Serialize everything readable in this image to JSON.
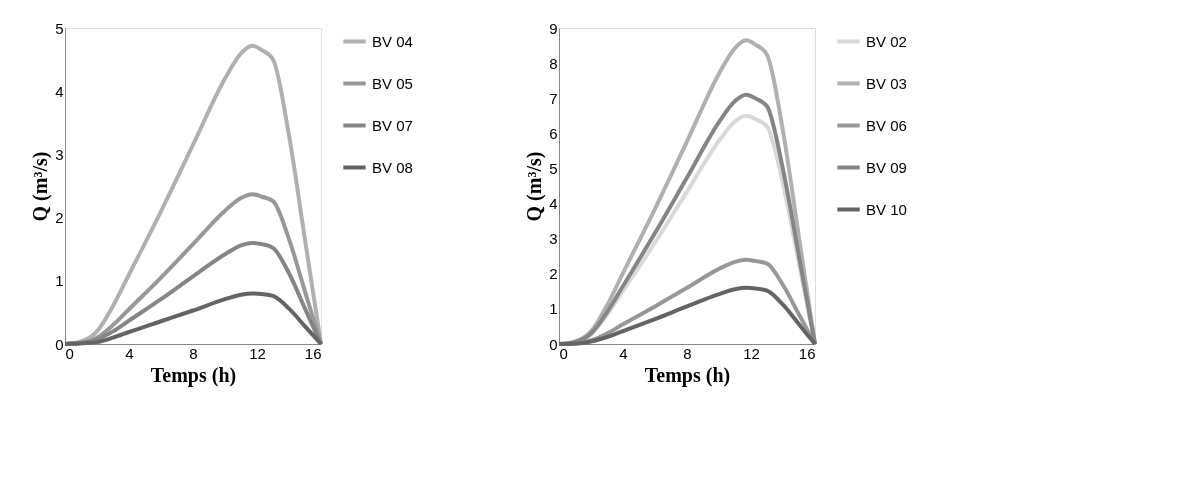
{
  "chart_data": [
    {
      "type": "line",
      "xlabel": "Temps (h)",
      "ylabel": "Q (m³/s)",
      "xlim": [
        0,
        16
      ],
      "xticks": [
        0,
        4,
        8,
        12,
        16
      ],
      "ylim": [
        0,
        5
      ],
      "yticks": [
        0,
        1,
        2,
        3,
        4,
        5
      ],
      "grid": false,
      "legend": "right",
      "marker": "none",
      "line_style": "solid",
      "x": [
        0,
        1,
        2,
        3,
        4,
        6,
        8,
        10,
        11,
        11.7,
        12.3,
        13,
        14,
        15,
        16
      ],
      "series": [
        {
          "name": "BV 04",
          "color": "#b0b0b0",
          "values": [
            0,
            0.04,
            0.2,
            0.6,
            1.1,
            2.1,
            3.15,
            4.2,
            4.6,
            4.72,
            4.65,
            4.5,
            3.3,
            1.65,
            0
          ]
        },
        {
          "name": "BV 05",
          "color": "#989898",
          "values": [
            0,
            0.02,
            0.1,
            0.3,
            0.55,
            1.05,
            1.58,
            2.11,
            2.31,
            2.37,
            2.33,
            2.26,
            1.66,
            0.83,
            0
          ]
        },
        {
          "name": "BV 07",
          "color": "#858585",
          "values": [
            0,
            0.01,
            0.07,
            0.2,
            0.37,
            0.71,
            1.07,
            1.42,
            1.56,
            1.6,
            1.58,
            1.52,
            1.12,
            0.56,
            0
          ]
        },
        {
          "name": "BV 08",
          "color": "#646464",
          "values": [
            0,
            0.01,
            0.03,
            0.1,
            0.19,
            0.36,
            0.53,
            0.71,
            0.78,
            0.8,
            0.79,
            0.76,
            0.56,
            0.28,
            0
          ]
        }
      ]
    },
    {
      "type": "line",
      "xlabel": "Temps (h)",
      "ylabel": "Q (m³/s)",
      "xlim": [
        0,
        16
      ],
      "xticks": [
        0,
        4,
        8,
        12,
        16
      ],
      "ylim": [
        0,
        9
      ],
      "yticks": [
        0,
        1,
        2,
        3,
        4,
        5,
        6,
        7,
        8,
        9
      ],
      "grid": false,
      "legend": "right",
      "marker": "none",
      "line_style": "solid",
      "x": [
        0,
        1,
        2,
        3,
        4,
        6,
        8,
        10,
        11,
        11.7,
        12.3,
        13,
        14,
        15,
        16
      ],
      "series": [
        {
          "name": "BV 02",
          "color": "#d9d9d9",
          "values": [
            0,
            0.05,
            0.27,
            0.83,
            1.51,
            2.89,
            4.34,
            5.79,
            6.34,
            6.5,
            6.4,
            6.19,
            4.55,
            2.28,
            0
          ]
        },
        {
          "name": "BV 03",
          "color": "#b0b0b0",
          "values": [
            0,
            0.07,
            0.36,
            1.1,
            2.02,
            3.85,
            5.77,
            7.7,
            8.43,
            8.65,
            8.52,
            8.24,
            6.06,
            3.03,
            0
          ]
        },
        {
          "name": "BV 06",
          "color": "#989898",
          "values": [
            0,
            0.02,
            0.1,
            0.3,
            0.56,
            1.07,
            1.6,
            2.14,
            2.34,
            2.4,
            2.36,
            2.29,
            1.68,
            0.84,
            0
          ]
        },
        {
          "name": "BV 09",
          "color": "#858585",
          "values": [
            0,
            0.06,
            0.3,
            0.9,
            1.65,
            3.16,
            4.74,
            6.32,
            6.92,
            7.1,
            6.99,
            6.77,
            4.97,
            2.49,
            0
          ]
        },
        {
          "name": "BV 10",
          "color": "#646464",
          "values": [
            0,
            0.01,
            0.07,
            0.2,
            0.37,
            0.71,
            1.07,
            1.42,
            1.56,
            1.6,
            1.58,
            1.52,
            1.12,
            0.56,
            0
          ]
        }
      ]
    }
  ]
}
